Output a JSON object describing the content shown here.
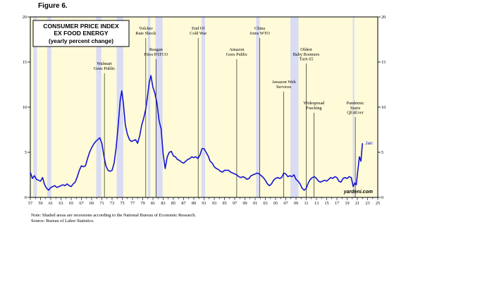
{
  "figure_label": "Figure 6.",
  "notes": [
    "Note: Shaded areas are recessions according to the National Bureau of Economic Research.",
    "Source: Bureau of Labor Statistics."
  ],
  "watermark": "yardeni.com",
  "colors": {
    "plot_background": "#fffbd9",
    "recession": "#d9dcf2",
    "series_line": "#1414d2",
    "axis": "#000000",
    "event_line": "#000000"
  },
  "chart_data": {
    "type": "line",
    "title": [
      "CONSUMER PRICE INDEX",
      "EX FOOD ENERGY",
      "(yearly percent change)"
    ],
    "xlabel": "",
    "ylabel": "",
    "xlim": [
      1957,
      2025
    ],
    "ylim": [
      0,
      20
    ],
    "y_ticks": [
      0,
      5,
      10,
      15,
      20
    ],
    "x_tick_labels": [
      "57",
      "59",
      "61",
      "63",
      "65",
      "67",
      "69",
      "71",
      "73",
      "75",
      "77",
      "79",
      "81",
      "83",
      "85",
      "87",
      "89",
      "91",
      "93",
      "95",
      "97",
      "99",
      "01",
      "03",
      "05",
      "07",
      "09",
      "11",
      "13",
      "15",
      "17",
      "19",
      "21",
      "23",
      "25"
    ],
    "x_tick_years": [
      1957,
      1959,
      1961,
      1963,
      1965,
      1967,
      1969,
      1971,
      1973,
      1975,
      1977,
      1979,
      1981,
      1983,
      1985,
      1987,
      1989,
      1991,
      1993,
      1995,
      1997,
      1999,
      2001,
      2003,
      2005,
      2007,
      2009,
      2011,
      2013,
      2015,
      2017,
      2019,
      2021,
      2023,
      2025
    ],
    "grid": false,
    "recessions": [
      [
        1957.6,
        1958.3
      ],
      [
        1960.3,
        1961.1
      ],
      [
        1969.9,
        1970.9
      ],
      [
        1973.9,
        1975.2
      ],
      [
        1980.0,
        1980.5
      ],
      [
        1981.5,
        1982.9
      ],
      [
        1990.5,
        1991.2
      ],
      [
        2001.2,
        2001.9
      ],
      [
        2007.9,
        2009.5
      ],
      [
        2020.1,
        2020.4
      ]
    ],
    "events": [
      {
        "year": 1971.5,
        "label": [
          "Walmart",
          "Goes Public"
        ]
      },
      {
        "year": 1979.6,
        "label": [
          "Volcker",
          "Rate Shock"
        ]
      },
      {
        "year": 1981.6,
        "label": [
          "Reagan",
          "Fires PATCO"
        ]
      },
      {
        "year": 1989.85,
        "label": [
          "End Of",
          "Cold War"
        ]
      },
      {
        "year": 1997.4,
        "label": [
          "Amazon",
          "Goes Public"
        ]
      },
      {
        "year": 2001.9,
        "label": [
          "China",
          "Joins WTO"
        ]
      },
      {
        "year": 2006.6,
        "label": [
          "Amazon Web",
          "Services"
        ]
      },
      {
        "year": 2011.0,
        "label": [
          "Oldest",
          "Baby Boomers",
          "Turn 65"
        ]
      },
      {
        "year": 2012.5,
        "label": [
          "Widespread",
          "Fracking"
        ]
      },
      {
        "year": 2020.6,
        "label": [
          "Pandemic",
          "Starts",
          "QE4Ever"
        ]
      }
    ],
    "series": [
      {
        "name": "",
        "last_label": "Jan",
        "x": [
          1957.0,
          1957.4,
          1957.8,
          1958.2,
          1958.6,
          1959.0,
          1959.4,
          1959.8,
          1960.2,
          1960.6,
          1961.0,
          1961.4,
          1961.8,
          1962.2,
          1962.6,
          1963.0,
          1963.4,
          1963.8,
          1964.2,
          1964.6,
          1965.0,
          1965.4,
          1965.8,
          1966.2,
          1966.6,
          1967.0,
          1967.4,
          1967.8,
          1968.2,
          1968.6,
          1969.0,
          1969.4,
          1969.8,
          1970.2,
          1970.6,
          1971.0,
          1971.4,
          1971.8,
          1972.2,
          1972.6,
          1973.0,
          1973.4,
          1973.8,
          1974.2,
          1974.6,
          1974.9,
          1975.2,
          1975.6,
          1976.0,
          1976.4,
          1976.8,
          1977.2,
          1977.6,
          1978.0,
          1978.4,
          1978.8,
          1979.2,
          1979.6,
          1980.0,
          1980.3,
          1980.6,
          1981.0,
          1981.4,
          1981.8,
          1982.2,
          1982.6,
          1983.0,
          1983.4,
          1983.8,
          1984.2,
          1984.6,
          1985.0,
          1985.4,
          1985.8,
          1986.2,
          1986.6,
          1987.0,
          1987.4,
          1987.8,
          1988.2,
          1988.6,
          1989.0,
          1989.4,
          1989.8,
          1990.2,
          1990.6,
          1991.0,
          1991.4,
          1991.8,
          1992.2,
          1992.6,
          1993.0,
          1993.4,
          1993.8,
          1994.2,
          1994.6,
          1995.0,
          1995.4,
          1995.8,
          1996.2,
          1996.6,
          1997.0,
          1997.4,
          1997.8,
          1998.2,
          1998.6,
          1999.0,
          1999.4,
          1999.8,
          2000.2,
          2000.6,
          2001.0,
          2001.4,
          2001.8,
          2002.2,
          2002.6,
          2003.0,
          2003.4,
          2003.8,
          2004.2,
          2004.6,
          2005.0,
          2005.4,
          2005.8,
          2006.2,
          2006.6,
          2007.0,
          2007.4,
          2007.8,
          2008.2,
          2008.6,
          2009.0,
          2009.4,
          2009.8,
          2010.2,
          2010.6,
          2011.0,
          2011.4,
          2011.8,
          2012.2,
          2012.6,
          2013.0,
          2013.4,
          2013.8,
          2014.2,
          2014.6,
          2015.0,
          2015.4,
          2015.8,
          2016.2,
          2016.6,
          2017.0,
          2017.4,
          2017.8,
          2018.2,
          2018.6,
          2019.0,
          2019.4,
          2019.8,
          2020.2,
          2020.5,
          2020.8,
          2021.1,
          2021.4,
          2021.7,
          2022.0
        ],
        "values": [
          2.8,
          2.1,
          2.4,
          2.0,
          1.9,
          1.8,
          2.2,
          1.4,
          1.0,
          0.8,
          1.1,
          1.2,
          1.3,
          1.1,
          1.2,
          1.3,
          1.4,
          1.3,
          1.5,
          1.3,
          1.2,
          1.5,
          1.7,
          2.3,
          3.0,
          3.5,
          3.4,
          3.5,
          4.3,
          5.0,
          5.5,
          5.9,
          6.2,
          6.4,
          6.6,
          6.0,
          4.6,
          3.5,
          3.0,
          2.9,
          3.0,
          3.8,
          5.5,
          8.0,
          10.8,
          11.8,
          10.5,
          8.0,
          7.0,
          6.4,
          6.2,
          6.3,
          6.4,
          6.0,
          6.8,
          8.0,
          8.8,
          9.8,
          11.5,
          12.8,
          13.5,
          12.2,
          11.5,
          10.4,
          8.5,
          7.6,
          4.8,
          3.2,
          4.5,
          5.0,
          5.1,
          4.6,
          4.5,
          4.2,
          4.1,
          3.9,
          3.8,
          4.0,
          4.2,
          4.3,
          4.5,
          4.4,
          4.5,
          4.3,
          4.7,
          5.4,
          5.4,
          5.0,
          4.6,
          4.0,
          3.8,
          3.4,
          3.2,
          3.1,
          2.9,
          2.8,
          3.0,
          3.0,
          3.0,
          2.8,
          2.7,
          2.6,
          2.5,
          2.3,
          2.2,
          2.3,
          2.2,
          2.0,
          2.1,
          2.4,
          2.5,
          2.6,
          2.7,
          2.6,
          2.4,
          2.2,
          1.9,
          1.5,
          1.3,
          1.5,
          1.9,
          2.1,
          2.2,
          2.1,
          2.2,
          2.7,
          2.6,
          2.3,
          2.4,
          2.3,
          2.5,
          2.0,
          1.8,
          1.5,
          1.0,
          0.8,
          1.0,
          1.6,
          2.0,
          2.2,
          2.3,
          2.1,
          1.8,
          1.7,
          1.8,
          1.9,
          1.8,
          2.0,
          2.2,
          2.1,
          2.3,
          2.2,
          1.8,
          1.7,
          2.1,
          2.2,
          2.1,
          2.3,
          2.2,
          1.2,
          1.6,
          1.4,
          3.0,
          4.5,
          4.0,
          6.0
        ]
      }
    ]
  }
}
